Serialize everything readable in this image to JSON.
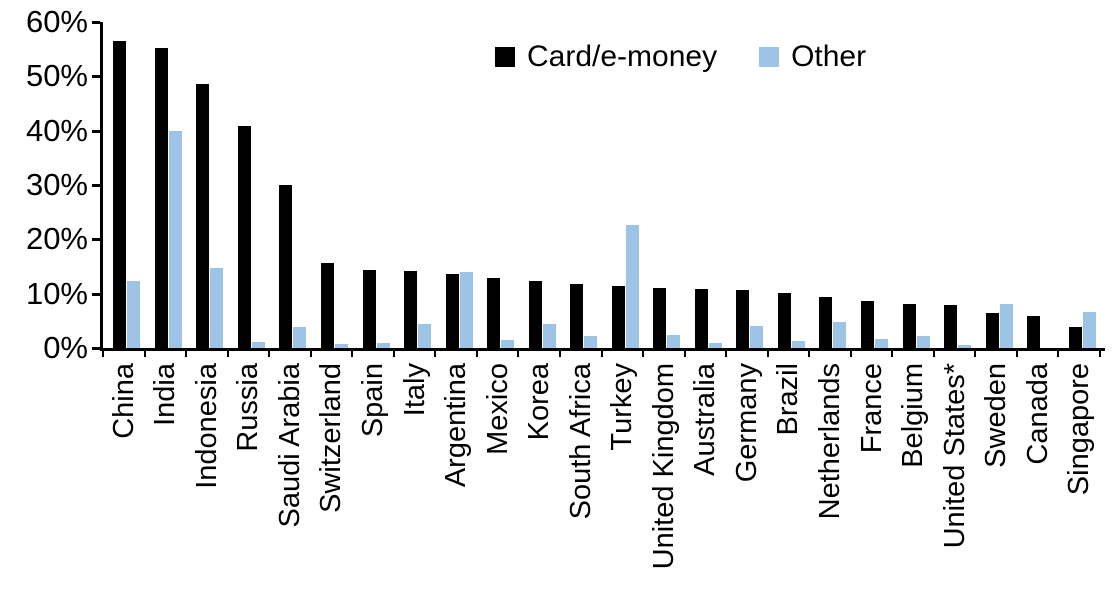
{
  "chart_data": {
    "type": "bar",
    "title": "",
    "xlabel": "",
    "ylabel": "",
    "ylim": [
      0,
      60
    ],
    "ytick_step": 10,
    "yticks": [
      "0%",
      "10%",
      "20%",
      "30%",
      "40%",
      "50%",
      "60%"
    ],
    "grid": false,
    "legend_position": "top-center",
    "categories": [
      "China",
      "India",
      "Indonesia",
      "Russia",
      "Saudi Arabia",
      "Switzerland",
      "Spain",
      "Italy",
      "Argentina",
      "Mexico",
      "Korea",
      "South Africa",
      "Turkey",
      "United Kingdom",
      "Australia",
      "Germany",
      "Brazil",
      "Netherlands",
      "France",
      "Belgium",
      "United States*",
      "Sweden",
      "Canada",
      "Singapore"
    ],
    "series": [
      {
        "name": "Card/e-money",
        "color": "#000000",
        "values": [
          56.5,
          55.2,
          48.5,
          40.8,
          30.0,
          15.7,
          14.3,
          14.1,
          13.6,
          12.9,
          12.3,
          11.7,
          11.5,
          11.0,
          10.8,
          10.7,
          10.1,
          9.3,
          8.7,
          8.1,
          7.9,
          6.5,
          5.9,
          3.9
        ]
      },
      {
        "name": "Other",
        "color": "#9DC3E6",
        "values": [
          12.4,
          39.9,
          14.8,
          1.1,
          3.9,
          0.7,
          0.9,
          4.4,
          13.9,
          1.4,
          4.4,
          2.3,
          22.6,
          2.4,
          1.0,
          4.0,
          1.2,
          4.8,
          1.7,
          2.2,
          0.5,
          8.1,
          0,
          6.7
        ]
      }
    ]
  },
  "axis_colors": {
    "axis_line": "#000000",
    "tick_label": "#000000"
  }
}
